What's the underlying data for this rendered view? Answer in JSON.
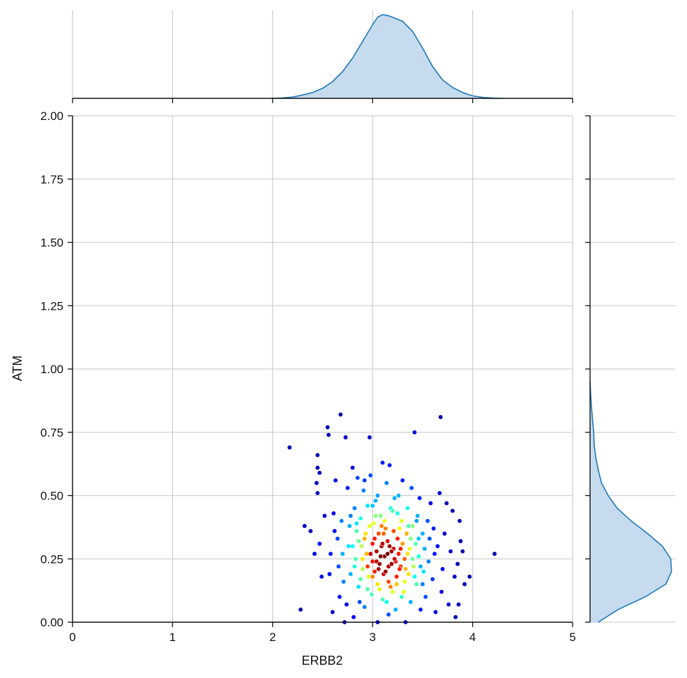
{
  "chart_data": {
    "type": "scatter",
    "subtype": "jointplot",
    "xlabel": "ERBB2",
    "ylabel": "ATM",
    "xlim": [
      0,
      5
    ],
    "ylim": [
      0,
      2
    ],
    "xticks": [
      "0",
      "1",
      "2",
      "3",
      "4",
      "5"
    ],
    "yticks": [
      "0.00",
      "0.25",
      "0.50",
      "0.75",
      "1.00",
      "1.25",
      "1.50",
      "1.75",
      "2.00"
    ],
    "grid": true,
    "colormap": "jet",
    "color_encodes": "point density",
    "marginals": "kde",
    "marginal_color": "#1f77b4",
    "marginal_fill": "#c6dbee",
    "x_kde": {
      "x": [
        2.0,
        2.1,
        2.2,
        2.3,
        2.4,
        2.5,
        2.6,
        2.7,
        2.8,
        2.9,
        3.0,
        3.05,
        3.1,
        3.15,
        3.2,
        3.3,
        3.4,
        3.5,
        3.6,
        3.7,
        3.8,
        3.9,
        4.0,
        4.1,
        4.2,
        4.3
      ],
      "density": [
        0.0,
        0.005,
        0.015,
        0.04,
        0.07,
        0.12,
        0.2,
        0.32,
        0.48,
        0.68,
        0.88,
        0.97,
        1.0,
        0.99,
        0.97,
        0.92,
        0.8,
        0.6,
        0.38,
        0.22,
        0.13,
        0.07,
        0.03,
        0.012,
        0.004,
        0.0
      ]
    },
    "y_kde": {
      "y": [
        0.0,
        0.05,
        0.1,
        0.15,
        0.2,
        0.25,
        0.3,
        0.35,
        0.4,
        0.45,
        0.5,
        0.55,
        0.6,
        0.65,
        0.7,
        0.75,
        0.8,
        0.85,
        0.9,
        0.95
      ],
      "density": [
        0.1,
        0.34,
        0.67,
        0.92,
        0.99,
        0.98,
        0.88,
        0.7,
        0.5,
        0.33,
        0.22,
        0.14,
        0.1,
        0.07,
        0.05,
        0.045,
        0.03,
        0.018,
        0.008,
        0.0
      ]
    },
    "points": [
      [
        2.17,
        0.69,
        0.05
      ],
      [
        2.28,
        0.05,
        0.05
      ],
      [
        2.32,
        0.38,
        0.07
      ],
      [
        2.38,
        0.36,
        0.06
      ],
      [
        2.42,
        0.27,
        0.1
      ],
      [
        2.45,
        0.66,
        0.05
      ],
      [
        2.45,
        0.61,
        0.05
      ],
      [
        2.47,
        0.59,
        0.06
      ],
      [
        2.44,
        0.55,
        0.05
      ],
      [
        2.45,
        0.51,
        0.05
      ],
      [
        2.47,
        0.31,
        0.12
      ],
      [
        2.49,
        0.18,
        0.1
      ],
      [
        2.52,
        0.42,
        0.08
      ],
      [
        2.55,
        0.77,
        0.05
      ],
      [
        2.56,
        0.74,
        0.05
      ],
      [
        2.57,
        0.19,
        0.13
      ],
      [
        2.58,
        0.27,
        0.15
      ],
      [
        2.6,
        0.04,
        0.08
      ],
      [
        2.61,
        0.43,
        0.12
      ],
      [
        2.62,
        0.36,
        0.13
      ],
      [
        2.63,
        0.56,
        0.1
      ],
      [
        2.65,
        0.33,
        0.2
      ],
      [
        2.66,
        0.22,
        0.2
      ],
      [
        2.67,
        0.1,
        0.12
      ],
      [
        2.68,
        0.82,
        0.05
      ],
      [
        2.69,
        0.4,
        0.25
      ],
      [
        2.7,
        0.27,
        0.3
      ],
      [
        2.71,
        0.16,
        0.25
      ],
      [
        2.72,
        0.0,
        0.07
      ],
      [
        2.73,
        0.73,
        0.07
      ],
      [
        2.74,
        0.07,
        0.1
      ],
      [
        2.75,
        0.53,
        0.15
      ],
      [
        2.76,
        0.3,
        0.35
      ],
      [
        2.77,
        0.38,
        0.3
      ],
      [
        2.78,
        0.19,
        0.3
      ],
      [
        2.8,
        0.61,
        0.1
      ],
      [
        2.81,
        0.02,
        0.12
      ],
      [
        2.82,
        0.45,
        0.25
      ],
      [
        2.83,
        0.25,
        0.45
      ],
      [
        2.84,
        0.36,
        0.45
      ],
      [
        2.85,
        0.57,
        0.2
      ],
      [
        2.86,
        0.14,
        0.35
      ],
      [
        2.87,
        0.08,
        0.2
      ],
      [
        2.88,
        0.41,
        0.4
      ],
      [
        2.89,
        0.3,
        0.55
      ],
      [
        2.9,
        0.21,
        0.55
      ],
      [
        2.91,
        0.52,
        0.25
      ],
      [
        2.92,
        0.56,
        0.18
      ],
      [
        2.93,
        0.35,
        0.65
      ],
      [
        2.94,
        0.27,
        0.7
      ],
      [
        2.95,
        0.46,
        0.35
      ],
      [
        2.96,
        0.18,
        0.6
      ],
      [
        2.97,
        0.73,
        0.08
      ],
      [
        2.98,
        0.58,
        0.2
      ],
      [
        2.99,
        0.11,
        0.45
      ],
      [
        3.0,
        0.31,
        0.85
      ],
      [
        3.0,
        0.24,
        0.88
      ],
      [
        3.01,
        0.39,
        0.6
      ],
      [
        3.02,
        0.2,
        0.85
      ],
      [
        3.03,
        0.48,
        0.3
      ],
      [
        3.04,
        0.28,
        0.95
      ],
      [
        3.05,
        0.15,
        0.65
      ],
      [
        3.05,
        0.0,
        0.12
      ],
      [
        3.06,
        0.35,
        0.8
      ],
      [
        3.07,
        0.23,
        0.98
      ],
      [
        3.08,
        0.42,
        0.5
      ],
      [
        3.09,
        0.3,
        0.95
      ],
      [
        3.1,
        0.63,
        0.15
      ],
      [
        3.1,
        0.09,
        0.45
      ],
      [
        3.11,
        0.19,
        0.92
      ],
      [
        3.12,
        0.26,
        1.0
      ],
      [
        3.13,
        0.37,
        0.75
      ],
      [
        3.14,
        0.55,
        0.25
      ],
      [
        3.15,
        0.32,
        0.92
      ],
      [
        3.16,
        0.22,
        0.95
      ],
      [
        3.17,
        0.62,
        0.15
      ],
      [
        3.18,
        0.14,
        0.75
      ],
      [
        3.19,
        0.28,
        0.97
      ],
      [
        3.2,
        0.44,
        0.45
      ],
      [
        3.21,
        0.36,
        0.8
      ],
      [
        3.22,
        0.25,
        0.93
      ],
      [
        3.23,
        0.05,
        0.3
      ],
      [
        3.24,
        0.18,
        0.85
      ],
      [
        3.25,
        0.33,
        0.85
      ],
      [
        3.26,
        0.5,
        0.3
      ],
      [
        3.27,
        0.21,
        0.85
      ],
      [
        3.28,
        0.29,
        0.85
      ],
      [
        3.29,
        0.4,
        0.6
      ],
      [
        3.3,
        0.56,
        0.15
      ],
      [
        3.31,
        0.12,
        0.6
      ],
      [
        3.32,
        0.25,
        0.78
      ],
      [
        3.33,
        0.0,
        0.12
      ],
      [
        3.34,
        0.35,
        0.7
      ],
      [
        3.35,
        0.45,
        0.4
      ],
      [
        3.36,
        0.19,
        0.65
      ],
      [
        3.37,
        0.29,
        0.6
      ],
      [
        3.38,
        0.08,
        0.3
      ],
      [
        3.39,
        0.53,
        0.2
      ],
      [
        3.4,
        0.38,
        0.5
      ],
      [
        3.41,
        0.22,
        0.55
      ],
      [
        3.42,
        0.75,
        0.08
      ],
      [
        3.43,
        0.31,
        0.45
      ],
      [
        3.44,
        0.15,
        0.45
      ],
      [
        3.45,
        0.42,
        0.3
      ],
      [
        3.46,
        0.26,
        0.4
      ],
      [
        3.47,
        0.49,
        0.15
      ],
      [
        3.48,
        0.05,
        0.15
      ],
      [
        3.5,
        0.35,
        0.3
      ],
      [
        3.51,
        0.2,
        0.35
      ],
      [
        3.52,
        0.29,
        0.3
      ],
      [
        3.53,
        0.1,
        0.2
      ],
      [
        3.55,
        0.4,
        0.2
      ],
      [
        3.56,
        0.24,
        0.25
      ],
      [
        3.57,
        0.33,
        0.2
      ],
      [
        3.58,
        0.47,
        0.1
      ],
      [
        3.6,
        0.17,
        0.18
      ],
      [
        3.61,
        0.37,
        0.15
      ],
      [
        3.62,
        0.27,
        0.15
      ],
      [
        3.63,
        0.04,
        0.1
      ],
      [
        3.65,
        0.3,
        0.12
      ],
      [
        3.67,
        0.51,
        0.08
      ],
      [
        3.68,
        0.81,
        0.05
      ],
      [
        3.69,
        0.12,
        0.1
      ],
      [
        3.7,
        0.21,
        0.12
      ],
      [
        3.72,
        0.35,
        0.08
      ],
      [
        3.74,
        0.47,
        0.06
      ],
      [
        3.76,
        0.07,
        0.08
      ],
      [
        3.78,
        0.28,
        0.08
      ],
      [
        3.8,
        0.44,
        0.05
      ],
      [
        3.82,
        0.18,
        0.07
      ],
      [
        3.83,
        0.02,
        0.05
      ],
      [
        3.85,
        0.23,
        0.06
      ],
      [
        3.86,
        0.07,
        0.05
      ],
      [
        3.87,
        0.4,
        0.05
      ],
      [
        3.88,
        0.32,
        0.05
      ],
      [
        3.9,
        0.28,
        0.05
      ],
      [
        3.92,
        0.15,
        0.05
      ],
      [
        3.97,
        0.18,
        0.05
      ],
      [
        4.22,
        0.27,
        0.05
      ],
      [
        2.98,
        0.27,
        0.92
      ],
      [
        3.02,
        0.33,
        0.85
      ],
      [
        3.06,
        0.21,
        0.95
      ],
      [
        3.08,
        0.26,
        1.0
      ],
      [
        3.1,
        0.31,
        0.95
      ],
      [
        3.13,
        0.2,
        0.97
      ],
      [
        3.15,
        0.27,
        1.0
      ],
      [
        3.17,
        0.3,
        0.97
      ],
      [
        3.19,
        0.23,
        0.97
      ],
      [
        3.21,
        0.29,
        0.93
      ],
      [
        3.23,
        0.24,
        0.9
      ],
      [
        3.26,
        0.27,
        0.85
      ],
      [
        3.28,
        0.22,
        0.82
      ],
      [
        3.04,
        0.24,
        0.95
      ],
      [
        3.11,
        0.35,
        0.78
      ],
      [
        3.16,
        0.16,
        0.8
      ],
      [
        2.95,
        0.22,
        0.82
      ],
      [
        3.0,
        0.18,
        0.75
      ],
      [
        3.3,
        0.31,
        0.72
      ],
      [
        3.33,
        0.21,
        0.7
      ],
      [
        3.12,
        0.4,
        0.6
      ],
      [
        3.2,
        0.12,
        0.6
      ],
      [
        2.92,
        0.33,
        0.7
      ],
      [
        2.9,
        0.25,
        0.65
      ],
      [
        3.35,
        0.27,
        0.65
      ],
      [
        3.27,
        0.37,
        0.62
      ],
      [
        3.03,
        0.42,
        0.5
      ],
      [
        3.07,
        0.13,
        0.6
      ],
      [
        3.24,
        0.15,
        0.68
      ],
      [
        3.38,
        0.33,
        0.5
      ],
      [
        2.88,
        0.17,
        0.45
      ],
      [
        2.86,
        0.32,
        0.48
      ],
      [
        3.4,
        0.25,
        0.48
      ],
      [
        3.18,
        0.45,
        0.4
      ],
      [
        3.14,
        0.08,
        0.38
      ],
      [
        3.42,
        0.18,
        0.38
      ],
      [
        2.84,
        0.39,
        0.35
      ],
      [
        3.46,
        0.33,
        0.32
      ],
      [
        3.0,
        0.46,
        0.32
      ],
      [
        3.25,
        0.43,
        0.4
      ],
      [
        3.29,
        0.1,
        0.42
      ],
      [
        2.95,
        0.13,
        0.45
      ],
      [
        3.32,
        0.16,
        0.6
      ],
      [
        3.09,
        0.38,
        0.75
      ],
      [
        2.97,
        0.38,
        0.6
      ],
      [
        3.36,
        0.38,
        0.45
      ],
      [
        2.82,
        0.22,
        0.4
      ],
      [
        2.8,
        0.3,
        0.38
      ],
      [
        3.48,
        0.22,
        0.3
      ],
      [
        3.44,
        0.4,
        0.28
      ],
      [
        3.05,
        0.5,
        0.28
      ],
      [
        3.22,
        0.49,
        0.3
      ],
      [
        2.78,
        0.42,
        0.25
      ],
      [
        3.5,
        0.15,
        0.25
      ],
      [
        2.92,
        0.06,
        0.25
      ],
      [
        3.16,
        0.03,
        0.2
      ]
    ]
  }
}
